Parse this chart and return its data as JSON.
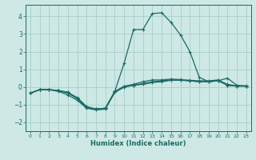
{
  "xlabel": "Humidex (Indice chaleur)",
  "xlim": [
    -0.5,
    23.5
  ],
  "ylim": [
    -2.5,
    4.65
  ],
  "yticks": [
    -2,
    -1,
    0,
    1,
    2,
    3,
    4
  ],
  "xticks": [
    0,
    1,
    2,
    3,
    4,
    5,
    6,
    7,
    8,
    9,
    10,
    11,
    12,
    13,
    14,
    15,
    16,
    17,
    18,
    19,
    20,
    21,
    22,
    23
  ],
  "bg_color": "#cde8e5",
  "grid_color": "#aacfcc",
  "line_color": "#1a6b65",
  "lines": [
    [
      -0.35,
      -0.15,
      -0.15,
      -0.25,
      -0.45,
      -0.75,
      -1.2,
      -1.3,
      -1.25,
      -0.3,
      0.0,
      0.1,
      0.2,
      0.3,
      0.35,
      0.4,
      0.4,
      0.35,
      0.3,
      0.3,
      0.35,
      0.1,
      0.05,
      0.05
    ],
    [
      -0.35,
      -0.15,
      -0.15,
      -0.2,
      -0.35,
      -0.65,
      -1.15,
      -1.25,
      -1.2,
      -0.25,
      0.05,
      0.15,
      0.3,
      0.4,
      0.4,
      0.45,
      0.42,
      0.38,
      0.35,
      0.35,
      0.4,
      0.15,
      0.07,
      0.07
    ],
    [
      -0.35,
      -0.15,
      -0.15,
      -0.2,
      -0.3,
      -0.65,
      -1.15,
      -1.25,
      -1.2,
      -0.3,
      0.0,
      0.1,
      0.15,
      0.25,
      0.3,
      0.38,
      0.38,
      0.35,
      0.3,
      0.3,
      0.38,
      0.1,
      0.05,
      0.05
    ],
    [
      -0.35,
      -0.15,
      -0.15,
      -0.2,
      -0.3,
      -0.6,
      -1.1,
      -1.25,
      -1.2,
      -0.25,
      1.35,
      3.25,
      3.25,
      4.15,
      4.2,
      3.65,
      2.95,
      2.0,
      0.55,
      0.3,
      0.35,
      0.5,
      0.1,
      0.05
    ]
  ]
}
